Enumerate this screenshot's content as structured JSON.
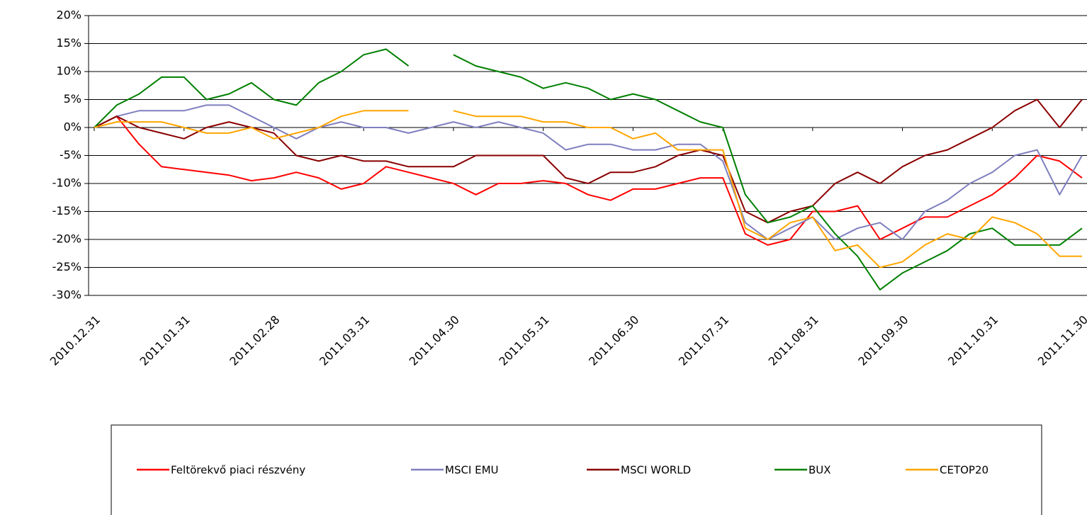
{
  "chart_data": {
    "type": "line",
    "categories": [
      "2010.12.31",
      null,
      null,
      null,
      "2011.01.31",
      null,
      null,
      null,
      "2011.02.28",
      null,
      null,
      null,
      "2011.03.31",
      null,
      null,
      null,
      "2011.04.30",
      null,
      null,
      null,
      "2011.05.31",
      null,
      null,
      null,
      "2011.06.30",
      null,
      null,
      null,
      "2011.07.31",
      null,
      null,
      null,
      "2011.08.31",
      null,
      null,
      null,
      "2011.09.30",
      null,
      null,
      null,
      "2011.10.31",
      null,
      null,
      null,
      "2011.11.30"
    ],
    "series": [
      {
        "name": "Feltörekvő piaci részvény",
        "color": "#ff0000",
        "values": [
          0,
          2,
          -3,
          -7,
          -7.5,
          -8,
          -8.5,
          -9.5,
          -9,
          -8,
          -9,
          -11,
          -10,
          -7,
          -8,
          -9,
          -10,
          -12,
          -10,
          -10,
          -9.5,
          -10,
          -12,
          -13,
          -11,
          -11,
          -10,
          -9,
          -9,
          -19,
          -21,
          -20,
          -15,
          -15,
          -14,
          -20,
          -18,
          -16,
          -16,
          -14,
          -12,
          -9,
          -5,
          -6,
          -9
        ]
      },
      {
        "name": "MSCI EMU",
        "color": "#7f7fbf",
        "values": [
          0,
          2,
          3,
          3,
          3,
          4,
          4,
          2,
          0,
          -2,
          0,
          1,
          0,
          0,
          -1,
          0,
          1,
          0,
          1,
          0,
          -1,
          -4,
          -3,
          -3,
          -4,
          -4,
          -3,
          -3,
          -6,
          -17,
          -20,
          -18,
          -16,
          -20,
          -18,
          -17,
          -20,
          -15,
          -13,
          -10,
          -8,
          -5,
          -4,
          -12,
          -5
        ]
      },
      {
        "name": "MSCI WORLD",
        "color": "#8b0000",
        "values": [
          0,
          2,
          0,
          -1,
          -2,
          0,
          1,
          0,
          -1,
          -5,
          -6,
          -5,
          -6,
          -6,
          -7,
          -7,
          -7,
          -5,
          -5,
          -5,
          -5,
          -9,
          -10,
          -8,
          -8,
          -7,
          -5,
          -4,
          -5,
          -15,
          -17,
          -15,
          -14,
          -10,
          -8,
          -10,
          -7,
          -5,
          -4,
          -2,
          0,
          3,
          5,
          0,
          5
        ]
      },
      {
        "name": "BUX",
        "color": "#008000",
        "values": [
          0,
          4,
          6,
          9,
          9,
          5,
          6,
          8,
          5,
          4,
          8,
          10,
          13,
          14,
          11,
          null,
          13,
          11,
          10,
          9,
          7,
          8,
          7,
          5,
          6,
          5,
          3,
          1,
          0,
          -12,
          -17,
          -16,
          -14,
          -19,
          -23,
          -29,
          -26,
          -24,
          -22,
          -19,
          -18,
          -21,
          -21,
          -21,
          -18
        ]
      },
      {
        "name": "CETOP20",
        "color": "#ffa500",
        "values": [
          0,
          1,
          1,
          1,
          0,
          -1,
          -1,
          0,
          -2,
          -1,
          0,
          2,
          3,
          3,
          3,
          null,
          3,
          2,
          2,
          2,
          1,
          1,
          0,
          0,
          -2,
          -1,
          -4,
          -4,
          -4,
          -18,
          -20,
          -17,
          -16,
          -22,
          -21,
          -25,
          -24,
          -21,
          -19,
          -20,
          -16,
          -17,
          -19,
          -23,
          -23
        ]
      }
    ],
    "ylim": [
      -30,
      20
    ],
    "yticks": [
      {
        "value": -30,
        "label": "-30%"
      },
      {
        "value": -25,
        "label": "-25%"
      },
      {
        "value": -20,
        "label": "-20%"
      },
      {
        "value": -15,
        "label": "-15%"
      },
      {
        "value": -10,
        "label": "-10%"
      },
      {
        "value": -5,
        "label": "-5%"
      },
      {
        "value": 0,
        "label": "0%"
      },
      {
        "value": 5,
        "label": "5%"
      },
      {
        "value": 10,
        "label": "10%"
      },
      {
        "value": 15,
        "label": "15%"
      },
      {
        "value": 20,
        "label": "20%"
      }
    ],
    "grid": true,
    "legend": "bottom"
  }
}
